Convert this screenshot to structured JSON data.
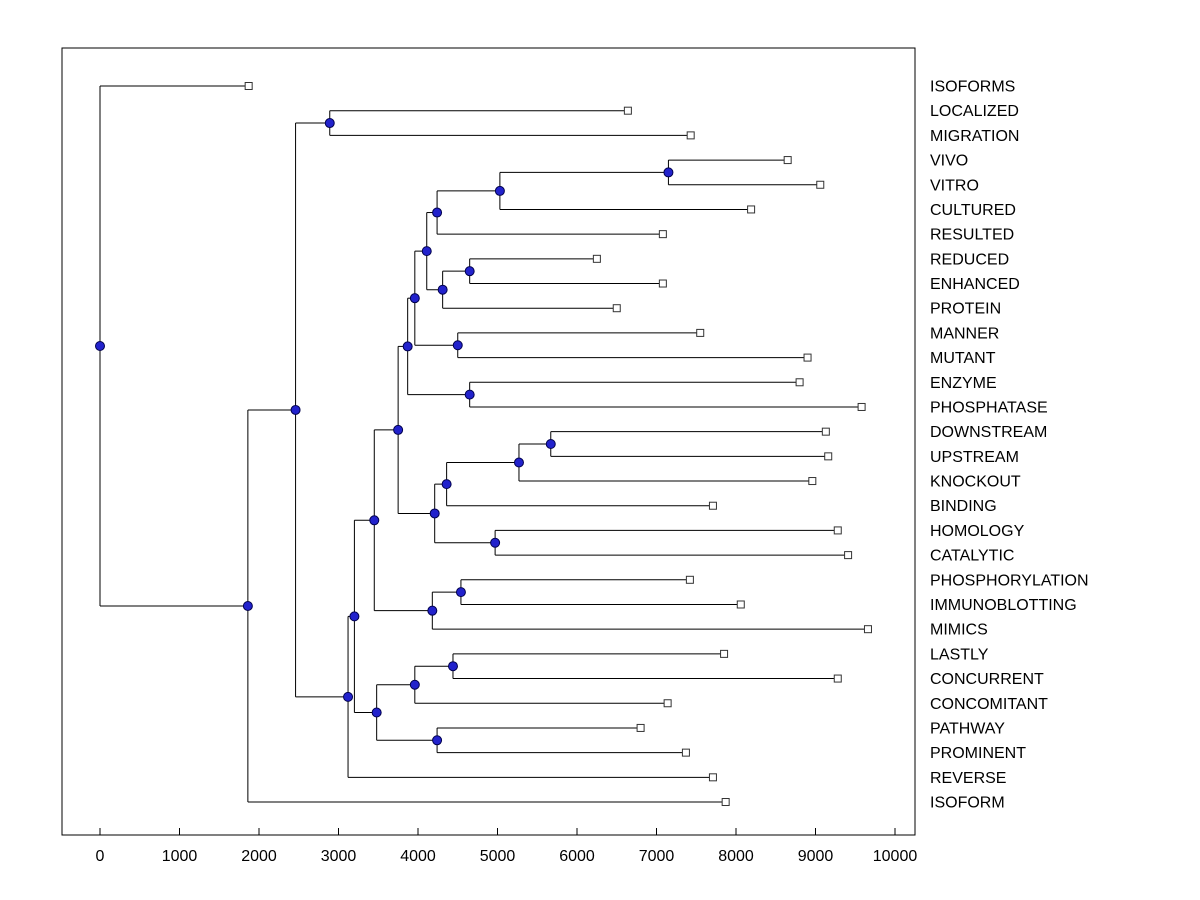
{
  "figure": {
    "background": "#ffffff",
    "plot_bg": "#ffffff",
    "border_color": "#000000",
    "line_color": "#000000",
    "node_marker_color": "#2222cc",
    "node_marker_edge": "#00004d",
    "leaf_marker_fill": "#ffffff",
    "leaf_marker_edge": "#333333",
    "label_color": "#000000"
  },
  "chart_data": {
    "type": "dendrogram",
    "orientation": "left-to-right",
    "title": "",
    "xlabel": "",
    "ylabel": "",
    "grid": false,
    "legend": false,
    "x_axis": {
      "min": 0,
      "max": 10000,
      "ticks": [
        0,
        1000,
        2000,
        3000,
        4000,
        5000,
        6000,
        7000,
        8000,
        9000,
        10000
      ]
    },
    "leaf_order": [
      "ISOFORMS",
      "LOCALIZED",
      "MIGRATION",
      "VIVO",
      "VITRO",
      "CULTURED",
      "RESULTED",
      "REDUCED",
      "ENHANCED",
      "PROTEIN",
      "MANNER",
      "MUTANT",
      "ENZYME",
      "PHOSPHATASE",
      "DOWNSTREAM",
      "UPSTREAM",
      "KNOCKOUT",
      "BINDING",
      "HOMOLOGY",
      "CATALYTIC",
      "PHOSPHORYLATION",
      "IMMUNOBLOTTING",
      "MIMICS",
      "LASTLY",
      "CONCURRENT",
      "CONCOMITANT",
      "PATHWAY",
      "PROMINENT",
      "REVERSE",
      "ISOFORM"
    ],
    "leaf_distances": {
      "ISOFORMS": 1870,
      "LOCALIZED": 6640,
      "MIGRATION": 7430,
      "VIVO": 8650,
      "VITRO": 9060,
      "CULTURED": 8190,
      "RESULTED": 7080,
      "REDUCED": 6250,
      "ENHANCED": 7080,
      "PROTEIN": 6500,
      "MANNER": 7550,
      "MUTANT": 8900,
      "ENZYME": 8800,
      "PHOSPHATASE": 9580,
      "DOWNSTREAM": 9130,
      "UPSTREAM": 9160,
      "KNOCKOUT": 8960,
      "BINDING": 7710,
      "HOMOLOGY": 9280,
      "CATALYTIC": 9410,
      "PHOSPHORYLATION": 7420,
      "IMMUNOBLOTTING": 8060,
      "MIMICS": 9660,
      "LASTLY": 7850,
      "CONCURRENT": 9280,
      "CONCOMITANT": 7140,
      "PATHWAY": 6800,
      "PROMINENT": 7370,
      "REVERSE": 7710,
      "ISOFORM": 7870
    },
    "tree": {
      "d": 0,
      "children": [
        {
          "label": "ISOFORMS",
          "d": 1870
        },
        {
          "d": 1860,
          "children": [
            {
              "d": 2460,
              "children": [
                {
                  "d": 2890,
                  "children": [
                    {
                      "label": "LOCALIZED",
                      "d": 6640
                    },
                    {
                      "label": "MIGRATION",
                      "d": 7430
                    }
                  ]
                },
                {
                  "d": 3120,
                  "children": [
                    {
                      "d": 3200,
                      "children": [
                        {
                          "d": 3450,
                          "children": [
                            {
                              "d": 3750,
                              "children": [
                                {
                                  "d": 3870,
                                  "children": [
                                    {
                                      "d": 3960,
                                      "children": [
                                        {
                                          "d": 4110,
                                          "children": [
                                            {
                                              "d": 4240,
                                              "children": [
                                                {
                                                  "d": 5030,
                                                  "children": [
                                                    {
                                                      "d": 7150,
                                                      "children": [
                                                        {
                                                          "label": "VIVO",
                                                          "d": 8650
                                                        },
                                                        {
                                                          "label": "VITRO",
                                                          "d": 9060
                                                        }
                                                      ]
                                                    },
                                                    {
                                                      "label": "CULTURED",
                                                      "d": 8190
                                                    }
                                                  ]
                                                },
                                                {
                                                  "label": "RESULTED",
                                                  "d": 7080
                                                }
                                              ]
                                            },
                                            {
                                              "d": 4310,
                                              "children": [
                                                {
                                                  "d": 4650,
                                                  "children": [
                                                    {
                                                      "label": "REDUCED",
                                                      "d": 6250
                                                    },
                                                    {
                                                      "label": "ENHANCED",
                                                      "d": 7080
                                                    }
                                                  ]
                                                },
                                                {
                                                  "label": "PROTEIN",
                                                  "d": 6500
                                                }
                                              ]
                                            }
                                          ]
                                        },
                                        {
                                          "d": 4500,
                                          "children": [
                                            {
                                              "label": "MANNER",
                                              "d": 7550
                                            },
                                            {
                                              "label": "MUTANT",
                                              "d": 8900
                                            }
                                          ]
                                        }
                                      ]
                                    },
                                    {
                                      "d": 4650,
                                      "children": [
                                        {
                                          "label": "ENZYME",
                                          "d": 8800
                                        },
                                        {
                                          "label": "PHOSPHATASE",
                                          "d": 9580
                                        }
                                      ]
                                    }
                                  ]
                                },
                                {
                                  "d": 4210,
                                  "children": [
                                    {
                                      "d": 4360,
                                      "children": [
                                        {
                                          "d": 5270,
                                          "children": [
                                            {
                                              "d": 5670,
                                              "children": [
                                                {
                                                  "label": "DOWNSTREAM",
                                                  "d": 9130
                                                },
                                                {
                                                  "label": "UPSTREAM",
                                                  "d": 9160
                                                }
                                              ]
                                            },
                                            {
                                              "label": "KNOCKOUT",
                                              "d": 8960
                                            }
                                          ]
                                        },
                                        {
                                          "label": "BINDING",
                                          "d": 7710
                                        }
                                      ]
                                    },
                                    {
                                      "d": 4970,
                                      "children": [
                                        {
                                          "label": "HOMOLOGY",
                                          "d": 9280
                                        },
                                        {
                                          "label": "CATALYTIC",
                                          "d": 9410
                                        }
                                      ]
                                    }
                                  ]
                                }
                              ]
                            },
                            {
                              "d": 4180,
                              "children": [
                                {
                                  "d": 4540,
                                  "children": [
                                    {
                                      "label": "PHOSPHORYLATION",
                                      "d": 7420
                                    },
                                    {
                                      "label": "IMMUNOBLOTTING",
                                      "d": 8060
                                    }
                                  ]
                                },
                                {
                                  "label": "MIMICS",
                                  "d": 9660
                                }
                              ]
                            }
                          ]
                        },
                        {
                          "d": 3480,
                          "children": [
                            {
                              "d": 3960,
                              "children": [
                                {
                                  "d": 4440,
                                  "children": [
                                    {
                                      "label": "LASTLY",
                                      "d": 7850
                                    },
                                    {
                                      "label": "CONCURRENT",
                                      "d": 9280
                                    }
                                  ]
                                },
                                {
                                  "label": "CONCOMITANT",
                                  "d": 7140
                                }
                              ]
                            },
                            {
                              "d": 4240,
                              "children": [
                                {
                                  "label": "PATHWAY",
                                  "d": 6800
                                },
                                {
                                  "label": "PROMINENT",
                                  "d": 7370
                                }
                              ]
                            }
                          ]
                        }
                      ]
                    },
                    {
                      "label": "REVERSE",
                      "d": 7710
                    }
                  ]
                }
              ]
            },
            {
              "label": "ISOFORM",
              "d": 7870
            }
          ]
        }
      ]
    }
  }
}
